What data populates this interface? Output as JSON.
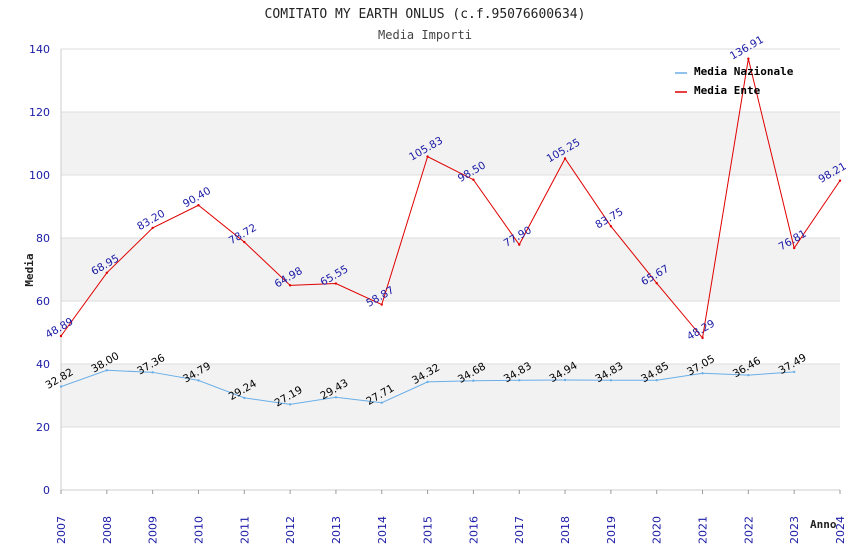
{
  "chart_data": {
    "type": "line",
    "title": "COMITATO MY EARTH ONLUS (c.f.95076600634)",
    "subtitle": "Media Importi",
    "xlabel": "Anno",
    "ylabel": "Media",
    "ylim": [
      0,
      140
    ],
    "yticks": [
      0,
      20,
      40,
      60,
      80,
      100,
      120,
      140
    ],
    "x": [
      "2007",
      "2008",
      "2009",
      "2010",
      "2011",
      "2012",
      "2013",
      "2014",
      "2015",
      "2016",
      "2017",
      "2018",
      "2019",
      "2020",
      "2021",
      "2022",
      "2023",
      "2024"
    ],
    "legend_position": "top-right",
    "series": [
      {
        "name": "Media Nazionale",
        "color": "#6aaee8",
        "label_color": "#000000",
        "values": [
          32.82,
          38.0,
          37.36,
          34.79,
          29.24,
          27.19,
          29.43,
          27.71,
          34.32,
          34.68,
          34.83,
          34.94,
          34.83,
          34.85,
          37.05,
          36.46,
          37.49,
          null
        ],
        "labels": [
          "32.82",
          "38.00",
          "37.36",
          "34.79",
          "29.24",
          "27.19",
          "29.43",
          "27.71",
          "34.32",
          "34.68",
          "34.83",
          "34.94",
          "34.83",
          "34.85",
          "37.05",
          "36.46",
          "37.49",
          null
        ]
      },
      {
        "name": "Media Ente",
        "color": "#e00000",
        "label_color": "#1a1aa6",
        "values": [
          48.89,
          68.95,
          83.2,
          90.4,
          78.72,
          64.98,
          65.55,
          58.87,
          105.83,
          98.5,
          77.9,
          105.25,
          83.75,
          65.67,
          48.29,
          136.91,
          76.81,
          98.21
        ],
        "labels": [
          "48.89",
          "68.95",
          "83.20",
          "90.40",
          "78.72",
          "64.98",
          "65.55",
          "58.87",
          "105.83",
          "98.50",
          "77.90",
          "105.25",
          "83.75",
          "65.67",
          "48.29",
          "136.91",
          "76.81",
          "98.21"
        ]
      }
    ]
  }
}
